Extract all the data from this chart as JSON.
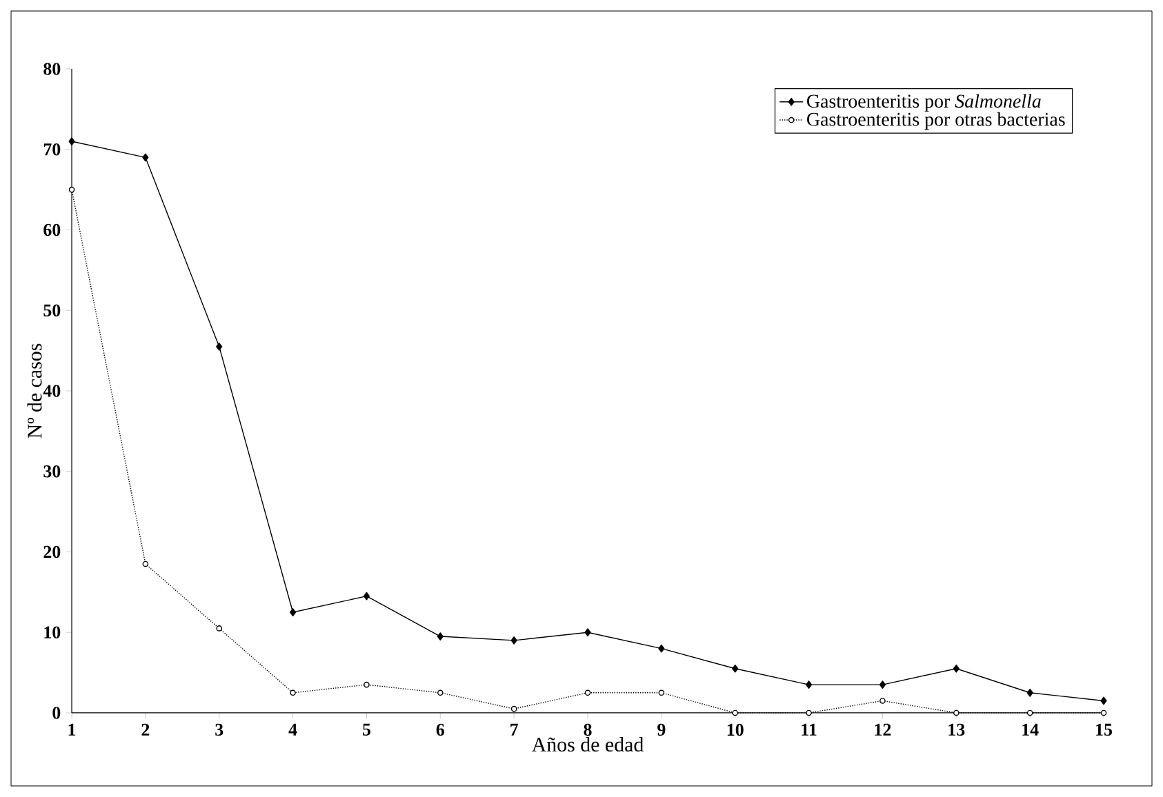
{
  "chart_data": {
    "type": "line",
    "xlabel": "Años de edad",
    "ylabel": "Nº de casos",
    "x": [
      1,
      2,
      3,
      4,
      5,
      6,
      7,
      8,
      9,
      10,
      11,
      12,
      13,
      14,
      15
    ],
    "series": [
      {
        "name": "Gastroenteritis por *Salmonella*",
        "color": "#000000",
        "marker": "diamond",
        "line_style": "solid",
        "values": [
          71,
          69,
          45.5,
          12.5,
          14.5,
          9.5,
          9,
          10,
          8,
          5.5,
          3.5,
          3.5,
          5.5,
          2.5,
          1.5
        ]
      },
      {
        "name": "Gastroenteritis por otras bacterias",
        "color": "#000000",
        "marker": "circle",
        "line_style": "dotted",
        "values": [
          65,
          18.5,
          10.5,
          2.5,
          3.5,
          2.5,
          0.5,
          2.5,
          2.5,
          0,
          0,
          1.5,
          0,
          0,
          0
        ]
      }
    ],
    "xlim": [
      1,
      15
    ],
    "ylim": [
      0,
      80
    ],
    "xticks": [
      1,
      2,
      3,
      4,
      5,
      6,
      7,
      8,
      9,
      10,
      11,
      12,
      13,
      14,
      15
    ],
    "yticks": [
      0,
      10,
      20,
      30,
      40,
      50,
      60,
      70,
      80
    ],
    "grid": false,
    "legend": "top right"
  }
}
